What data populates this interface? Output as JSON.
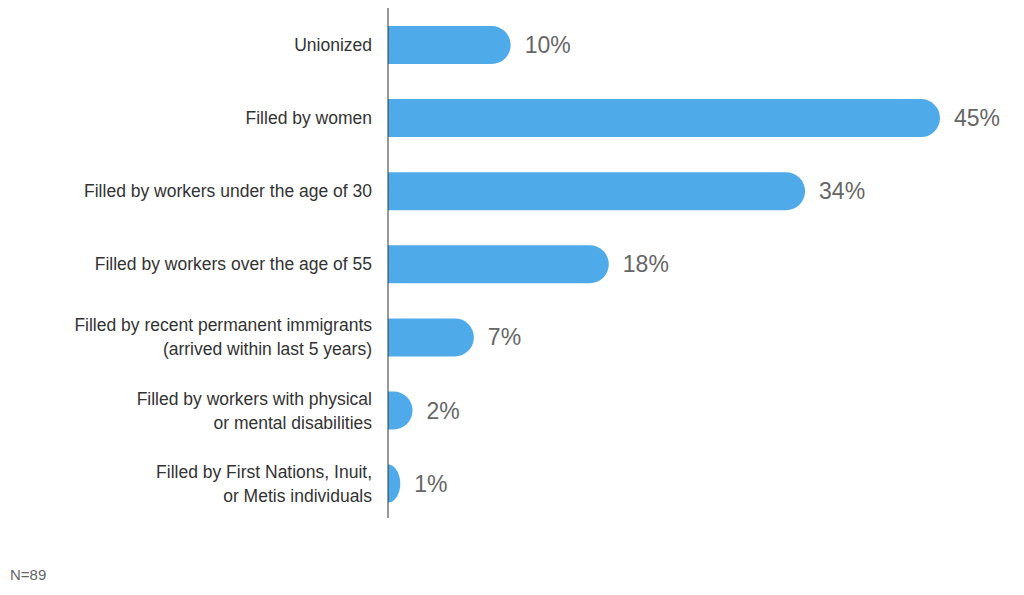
{
  "chart_data": {
    "type": "bar",
    "orientation": "horizontal",
    "categories": [
      "Unionized",
      "Filled by women",
      "Filled by workers under the age of 30",
      "Filled by workers over the age of 55",
      "Filled by recent permanent immigrants\n(arrived within last 5 years)",
      "Filled by workers with physical\nor mental disabilities",
      "Filled by First Nations, Inuit,\nor Metis individuals"
    ],
    "values": [
      10,
      45,
      34,
      18,
      7,
      2,
      1
    ],
    "value_labels": [
      "10%",
      "45%",
      "34%",
      "18%",
      "7%",
      "2%",
      "1%"
    ],
    "data_labels": true,
    "tick_labels": "y",
    "grid": false,
    "color": "#4eaae8",
    "annotation": "N=89"
  }
}
